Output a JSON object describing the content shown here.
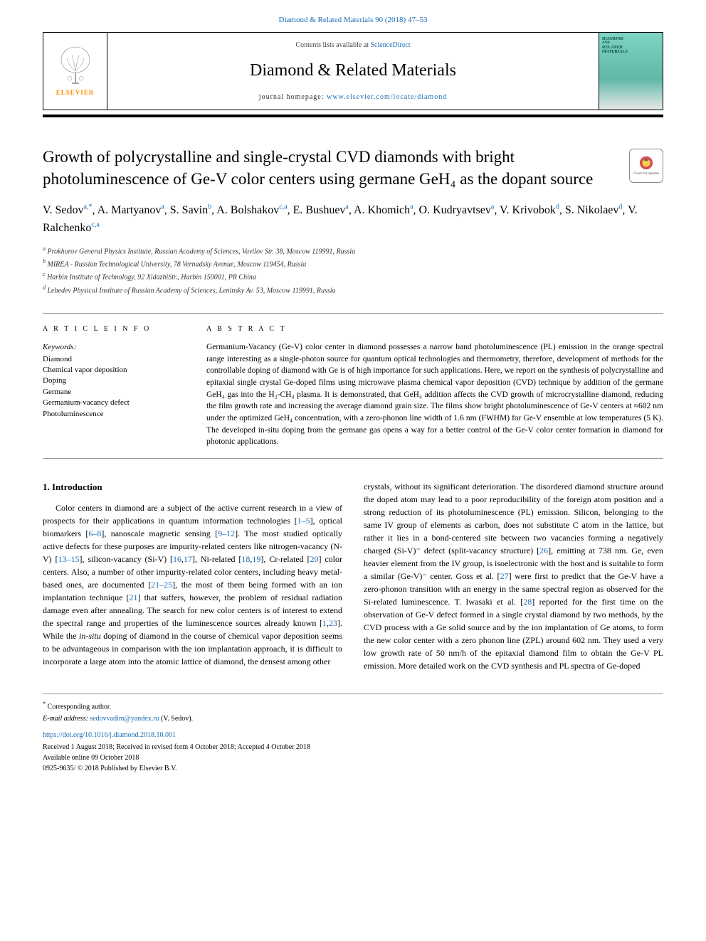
{
  "header": {
    "top_link": "Diamond & Related Materials 90 (2018) 47–53",
    "publisher_word": "ELSEVIER",
    "contents_prefix": "Contents lists available at ",
    "contents_link": "ScienceDirect",
    "journal_name": "Diamond & Related Materials",
    "homepage_prefix": "journal homepage: ",
    "homepage_link": "www.elsevier.com/locate/diamond",
    "cover_line1": "DIAMOND",
    "cover_line2": "RELATED",
    "cover_line3": "MATERIALS"
  },
  "title": "Growth of polycrystalline and single-crystal CVD diamonds with bright photoluminescence of Ge-V color centers using germane GeH₄ as the dopant source",
  "check_updates_label": "Check for updates",
  "authors_html": "V. Sedov<sup>a,*</sup>, A. Martyanov<sup>a</sup>, S. Savin<sup>b</sup>, A. Bolshakov<sup>c,a</sup>, E. Bushuev<sup>a</sup>, A. Khomich<sup>a</sup>, O. Kudryavtsev<sup>a</sup>, V. Krivobok<sup>d</sup>, S. Nikolaev<sup>d</sup>, V. Ralchenko<sup>c,a</sup>",
  "affiliations": [
    {
      "sup": "a",
      "text": "Prokhorov General Physics Institute, Russian Academy of Sciences, Vavilov Str. 38, Moscow 119991, Russia"
    },
    {
      "sup": "b",
      "text": "MIREA - Russian Technological University, 78 Vernadsky Avenue, Moscow 119454, Russia"
    },
    {
      "sup": "c",
      "text": "Harbin Institute of Technology, 92 XidazhiStr., Harbin 150001, PR China"
    },
    {
      "sup": "d",
      "text": "Lebedev Physical Institute of Russian Academy of Sciences, Leninsky Av. 53, Moscow 119991, Russia"
    }
  ],
  "article_info_label": "A R T I C L E  I N F O",
  "keywords_label": "Keywords:",
  "keywords": [
    "Diamond",
    "Chemical vapor deposition",
    "Doping",
    "Germane",
    "Germanium-vacancy defect",
    "Photoluminescence"
  ],
  "abstract_label": "A B S T R A C T",
  "abstract_text": "Germanium-Vacancy (Ge-V) color center in diamond possesses a narrow band photoluminescence (PL) emission in the orange spectral range interesting as a single-photon source for quantum optical technologies and thermometry, therefore, development of methods for the controllable doping of diamond with Ge is of high importance for such applications. Here, we report on the synthesis of polycrystalline and epitaxial single crystal Ge-doped films using microwave plasma chemical vapor deposition (CVD) technique by addition of the germane GeH₄ gas into the H₂-CH₄ plasma. It is demonstrated, that GeH₄ addition affects the CVD growth of microcrystalline diamond, reducing the film growth rate and increasing the average diamond grain size. The films show bright photoluminescence of Ge-V centers at ≈602 nm under the optimized GeH₄ concentration, with a zero-phonon line width of 1.6 nm (FWHM) for Ge-V ensemble at low temperatures (5 K). The developed in-situ doping from the germane gas opens a way for a better control of the Ge-V color center formation in diamond for photonic applications.",
  "body": {
    "heading": "1. Introduction",
    "col1": "Color centers in diamond are a subject of the active current research in a view of prospects for their applications in quantum information technologies [<span class=\"ref-link\">1–5</span>], optical biomarkers [<span class=\"ref-link\">6–8</span>], nanoscale magnetic sensing [<span class=\"ref-link\">9–12</span>]. The most studied optically active defects for these purposes are impurity-related centers like nitrogen-vacancy (N-V) [<span class=\"ref-link\">13–15</span>], silicon-vacancy (Si-V) [<span class=\"ref-link\">16</span>,<span class=\"ref-link\">17</span>], Ni-related [<span class=\"ref-link\">18</span>,<span class=\"ref-link\">19</span>], Cr-related [<span class=\"ref-link\">20</span>] color centers. Also, a number of other impurity-related color centers, including heavy metal-based ones, are documented [<span class=\"ref-link\">21–25</span>], the most of them being formed with an ion implantation technique [<span class=\"ref-link\">21</span>] that suffers, however, the problem of residual radiation damage even after annealing. The search for new color centers is of interest to extend the spectral range and properties of the luminescence sources already known [<span class=\"ref-link\">1</span>,<span class=\"ref-link\">23</span>]. While the <i>in-situ</i> doping of diamond in the course of chemical vapor deposition seems to be advantageous in comparison with the ion implantation approach, it is difficult to incorporate a large atom into the atomic lattice of diamond, the densest among other",
    "col2": "crystals, without its significant deterioration. The disordered diamond structure around the doped atom may lead to a poor reproducibility of the foreign atom position and a strong reduction of its photoluminescence (PL) emission. Silicon, belonging to the same IV group of elements as carbon, does not substitute C atom in the lattice, but rather it lies in a bond-centered site between two vacancies forming a negatively charged (Si-V)⁻ defect (split-vacancy structure) [<span class=\"ref-link\">26</span>], emitting at 738 nm. Ge, even heavier element from the IV group, is isoelectronic with the host and is suitable to form a similar (Ge-V)⁻ center. Goss et al. [<span class=\"ref-link\">27</span>] were first to predict that the Ge-V have a zero-phonon transition with an energy in the same spectral region as observed for the Si-related luminescence. T. Iwasaki et al. [<span class=\"ref-link\">28</span>] reported for the first time on the observation of Ge-V defect formed in a single crystal diamond by two methods, by the CVD process with a Ge solid source and by the ion implantation of Ge atoms, to form the new color center with a zero phonon line (ZPL) around 602 nm. They used a very low growth rate of 50 nm/h of the epitaxial diamond film to obtain the Ge-V PL emission. More detailed work on the CVD synthesis and PL spectra of Ge-doped"
  },
  "footer": {
    "corr_marker": "*",
    "corr_text": "Corresponding author.",
    "email_label": "E-mail address: ",
    "email": "sedovvadim@yandex.ru",
    "email_suffix": " (V. Sedov).",
    "doi": "https://doi.org/10.1016/j.diamond.2018.10.001",
    "received": "Received 1 August 2018; Received in revised form 4 October 2018; Accepted 4 October 2018",
    "available": "Available online 09 October 2018",
    "copyright": "0925-9635/ © 2018 Published by Elsevier B.V."
  },
  "colors": {
    "link": "#1a6eb8",
    "text": "#000000",
    "elsevier_orange": "#ff8c00",
    "cover_teal": "#7fd4c4"
  },
  "typography": {
    "title_fontsize": 23,
    "journal_name_fontsize": 24,
    "authors_fontsize": 16,
    "body_fontsize": 12,
    "abstract_fontsize": 11.5,
    "footer_fontsize": 10
  }
}
